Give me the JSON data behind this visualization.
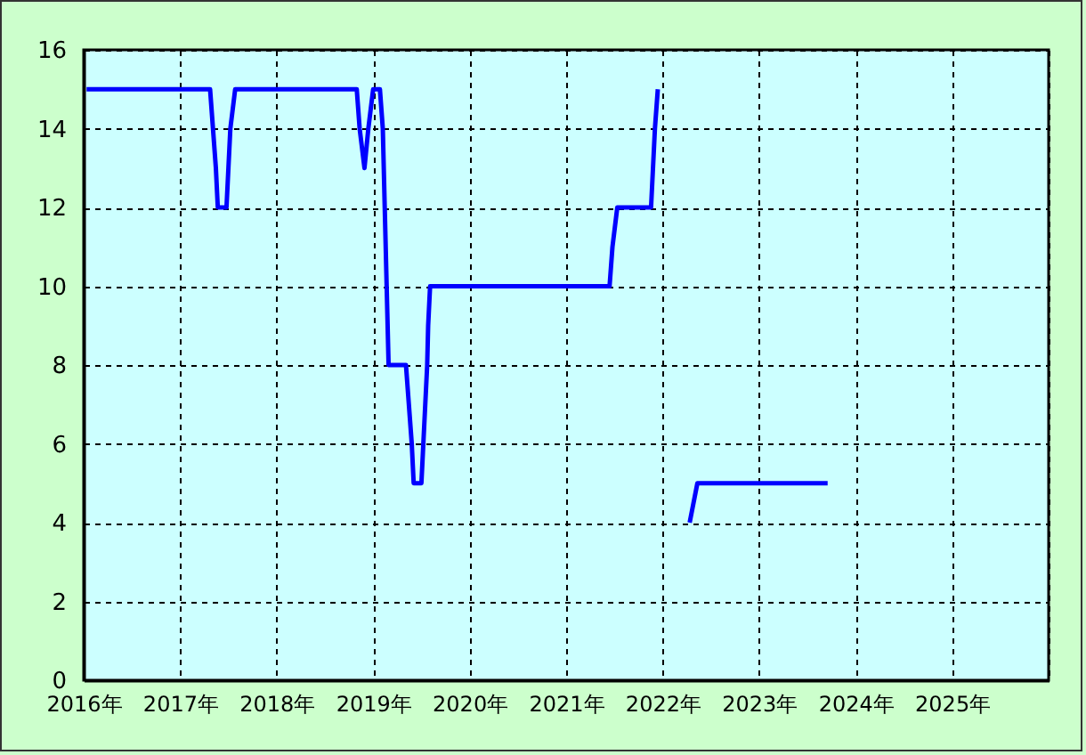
{
  "chart_data": {
    "type": "line",
    "xlim": [
      2016,
      2026
    ],
    "xticks": [
      {
        "value": 2016,
        "label": "2016年"
      },
      {
        "value": 2017,
        "label": "2017年"
      },
      {
        "value": 2018,
        "label": "2018年"
      },
      {
        "value": 2019,
        "label": "2019年"
      },
      {
        "value": 2020,
        "label": "2020年"
      },
      {
        "value": 2021,
        "label": "2021年"
      },
      {
        "value": 2022,
        "label": "2022年"
      },
      {
        "value": 2023,
        "label": "2023年"
      },
      {
        "value": 2024,
        "label": "2024年"
      },
      {
        "value": 2025,
        "label": "2025年"
      },
      {
        "value": 2026,
        "label": null
      }
    ],
    "ylim": [
      0,
      16
    ],
    "yticks": [
      0,
      2,
      4,
      6,
      8,
      10,
      12,
      14,
      16
    ],
    "grid": true,
    "legend": false,
    "series": [
      {
        "color": "#0000ff",
        "x": [
          2016.03,
          2017.31,
          2017.34,
          2017.37,
          2017.39,
          2017.48,
          2017.5,
          2017.52,
          2017.57,
          2018.83,
          2018.86,
          2018.91,
          2018.95,
          2019.0,
          2019.07,
          2019.1,
          2019.12,
          2019.14,
          2019.16,
          2019.34,
          2019.37,
          2019.4,
          2019.42,
          2019.5,
          2019.52,
          2019.54,
          2019.56,
          2019.57,
          2019.59,
          2021.45,
          2021.48,
          2021.53,
          2021.88,
          2021.9,
          2021.92,
          2021.95,
          2022.1,
          2022.28,
          2022.36,
          2023.71
        ],
        "values": [
          15,
          15,
          14,
          13,
          12,
          12,
          13,
          14,
          15,
          15,
          14,
          13,
          14,
          15,
          15,
          14,
          12,
          10,
          8,
          8,
          7,
          6,
          5,
          5,
          6,
          7,
          8,
          9,
          10,
          10,
          11,
          12,
          12,
          13,
          14,
          15,
          null,
          4,
          5,
          5
        ]
      }
    ]
  }
}
